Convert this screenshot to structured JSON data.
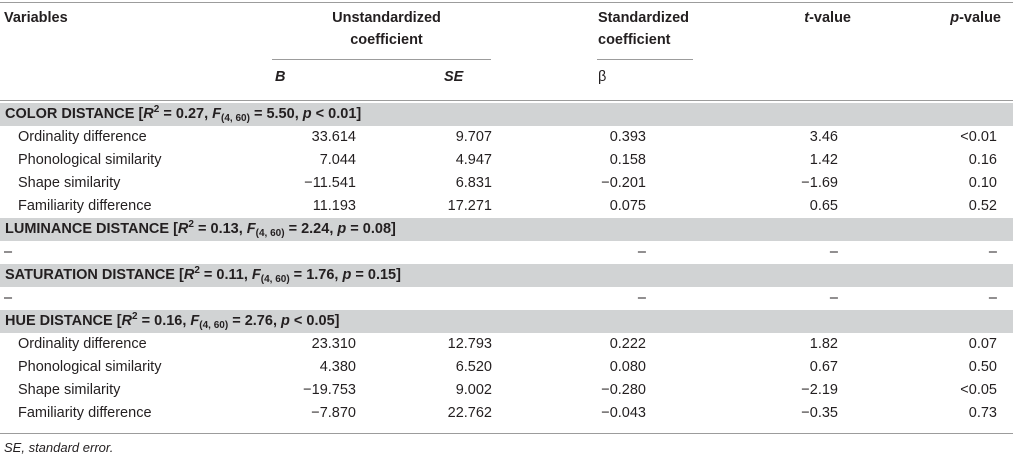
{
  "headers": {
    "variables": "Variables",
    "unstd_line1": "Unstandardized",
    "unstd_line2": "coefficient",
    "std_line1": "Standardized",
    "std_line2": "coefficient",
    "t_italic": "t",
    "t_rest": "-value",
    "p_italic": "p",
    "p_rest": "-value",
    "b": "B",
    "se": "SE",
    "beta": "β"
  },
  "sections": [
    {
      "name": "COLOR DISTANCE",
      "r2": "0.27",
      "df": "(4, 60)",
      "f": "5.50",
      "p_op": "<",
      "p": "0.01",
      "rows": [
        {
          "variable": "Ordinality difference",
          "b": "33.614",
          "se": "9.707",
          "beta": "0.393",
          "t": "3.46",
          "p": "<0.01"
        },
        {
          "variable": "Phonological similarity",
          "b": "7.044",
          "se": "4.947",
          "beta": "0.158",
          "t": "1.42",
          "p": "0.16"
        },
        {
          "variable": "Shape similarity",
          "b": "−11.541",
          "se": "6.831",
          "beta": "−0.201",
          "t": "−1.69",
          "p": "0.10"
        },
        {
          "variable": "Familiarity difference",
          "b": "11.193",
          "se": "17.271",
          "beta": "0.075",
          "t": "0.65",
          "p": "0.52"
        }
      ]
    },
    {
      "name": "LUMINANCE DISTANCE",
      "r2": "0.13",
      "df": "(4, 60)",
      "f": "2.24",
      "p_op": "=",
      "p": "0.08",
      "rows": [
        {
          "variable": "–",
          "b": "",
          "se": "",
          "beta": "–",
          "t": "–",
          "p": "–"
        }
      ]
    },
    {
      "name": "SATURATION DISTANCE",
      "r2": "0.11",
      "df": "(4, 60)",
      "f": "1.76",
      "p_op": "=",
      "p": "0.15",
      "rows": [
        {
          "variable": "–",
          "b": "",
          "se": "",
          "beta": "–",
          "t": "–",
          "p": "–"
        }
      ]
    },
    {
      "name": "HUE DISTANCE",
      "r2": "0.16",
      "df": "(4, 60)",
      "f": "2.76",
      "p_op": "<",
      "p": "0.05",
      "rows": [
        {
          "variable": "Ordinality difference",
          "b": "23.310",
          "se": "12.793",
          "beta": "0.222",
          "t": "1.82",
          "p": "0.07"
        },
        {
          "variable": "Phonological similarity",
          "b": "4.380",
          "se": "6.520",
          "beta": "0.080",
          "t": "0.67",
          "p": "0.50"
        },
        {
          "variable": "Shape similarity",
          "b": "−19.753",
          "se": "9.002",
          "beta": "−0.280",
          "t": "−2.19",
          "p": "<0.05"
        },
        {
          "variable": "Familiarity difference",
          "b": "−7.870",
          "se": "22.762",
          "beta": "−0.043",
          "t": "−0.35",
          "p": "0.73"
        }
      ]
    }
  ],
  "footnote": {
    "abbr": "SE",
    "text": ", standard error."
  }
}
